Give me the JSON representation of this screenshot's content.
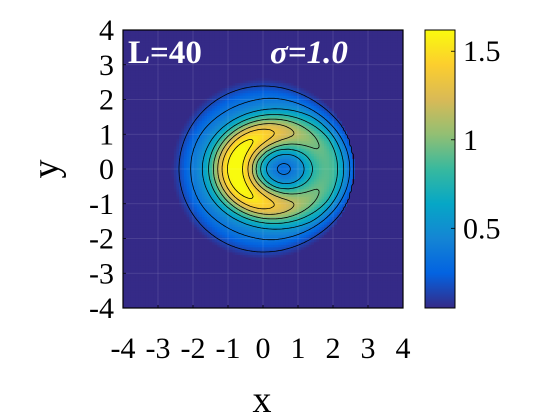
{
  "chart_data": {
    "type": "heatmap",
    "annotation_left": "L=40",
    "annotation_right": "σ=1.0",
    "xlabel": "x",
    "ylabel": "y",
    "xlim": [
      -4,
      4
    ],
    "ylim": [
      -4,
      4
    ],
    "x_ticks": [
      "-4",
      "-3",
      "-2",
      "-1",
      "0",
      "1",
      "2",
      "3",
      "4"
    ],
    "y_ticks": [
      "-4",
      "-3",
      "-2",
      "-1",
      "0",
      "1",
      "2",
      "3",
      "4"
    ],
    "colorbar": {
      "range": [
        0.05,
        1.62
      ],
      "ticks": [
        {
          "value": 0.5,
          "label": "0.5"
        },
        {
          "value": 1,
          "label": "1"
        },
        {
          "value": 1.5,
          "label": "1.5"
        }
      ],
      "colormap": "parula"
    },
    "field": {
      "outer_radius": 2.6,
      "ring_center": [
        0.5,
        0
      ],
      "ring_radius_x": 1.3,
      "ring_radius_y": 1.05,
      "ring_width": 0.55,
      "peak_angle_deg": 180,
      "peak_value": 1.62,
      "background_value": 0.05
    },
    "contour_levels": [
      0.15,
      0.35,
      0.55,
      0.75,
      0.95,
      1.15,
      1.35,
      1.55
    ],
    "grid": true
  },
  "colors": {
    "parula": [
      "#352a87",
      "#0363e1",
      "#1485d4",
      "#06a7c6",
      "#38b99e",
      "#92bf73",
      "#d9ba56",
      "#fcce2e",
      "#f9fb0e"
    ]
  }
}
